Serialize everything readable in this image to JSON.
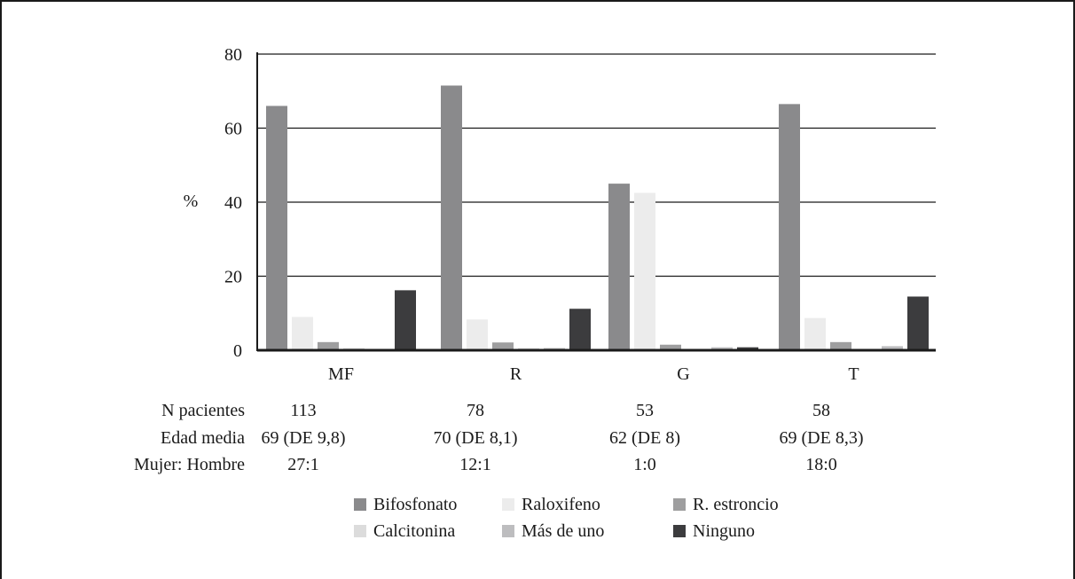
{
  "chart_data": {
    "type": "bar",
    "ylabel": "%",
    "ylim": [
      0,
      80
    ],
    "yticks": [
      0,
      20,
      40,
      60,
      80
    ],
    "grid": true,
    "categories": [
      "MF",
      "R",
      "G",
      "T"
    ],
    "series": [
      {
        "name": "Bifosfonato",
        "color": "#8a8a8c",
        "values": [
          66,
          71.5,
          45,
          66.5
        ]
      },
      {
        "name": "Raloxifeno",
        "color": "#ececec",
        "values": [
          9,
          8.3,
          42.5,
          8.7
        ]
      },
      {
        "name": "R. estroncio",
        "color": "#9e9e9f",
        "values": [
          2.2,
          2.1,
          1.5,
          2.2
        ]
      },
      {
        "name": "Calcitonina",
        "color": "#dcdcdc",
        "values": [
          0.6,
          0.6,
          0,
          0
        ]
      },
      {
        "name": "Más de uno",
        "color": "#bdbdbf",
        "values": [
          0,
          0.6,
          0.8,
          1.1
        ]
      },
      {
        "name": "Ninguno",
        "color": "#3c3c3e",
        "values": [
          16.2,
          11.2,
          0.8,
          14.5
        ]
      }
    ],
    "table": {
      "rows": [
        {
          "label": "N pacientes",
          "values": [
            "113",
            "78",
            "53",
            "58"
          ]
        },
        {
          "label": "Edad media",
          "values": [
            "69 (DE 9,8)",
            "70 (DE 8,1)",
            "62 (DE 8)",
            "69 (DE 8,3)"
          ]
        },
        {
          "label": "Mujer: Hombre",
          "values": [
            "27:1",
            "12:1",
            "1:0",
            "18:0"
          ]
        }
      ]
    },
    "legend_position": "bottom-center",
    "legend_order": [
      "Bifosfonato",
      "Raloxifeno",
      "R. estroncio",
      "Calcitonina",
      "Más de uno",
      "Ninguno"
    ]
  }
}
